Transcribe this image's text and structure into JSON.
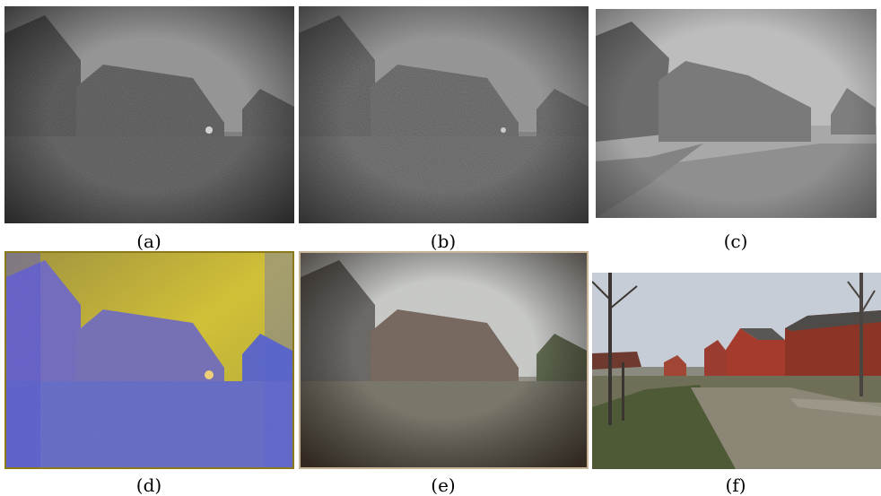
{
  "figure": {
    "panels": [
      {
        "id": "a",
        "caption": "(a)",
        "description": "noisy grayscale low-light image of houses"
      },
      {
        "id": "b",
        "caption": "(b)",
        "description": "noisier grayscale low-light image of houses"
      },
      {
        "id": "c",
        "caption": "(c)",
        "description": "hazy grayscale image of houses and road"
      },
      {
        "id": "d",
        "caption": "(d)",
        "description": "blue and yellow tinted image of houses"
      },
      {
        "id": "e",
        "caption": "(e)",
        "description": "desaturated color image of houses with vignette"
      },
      {
        "id": "f",
        "caption": "(f)",
        "description": "color photo of red brick houses and muddy road"
      }
    ]
  }
}
